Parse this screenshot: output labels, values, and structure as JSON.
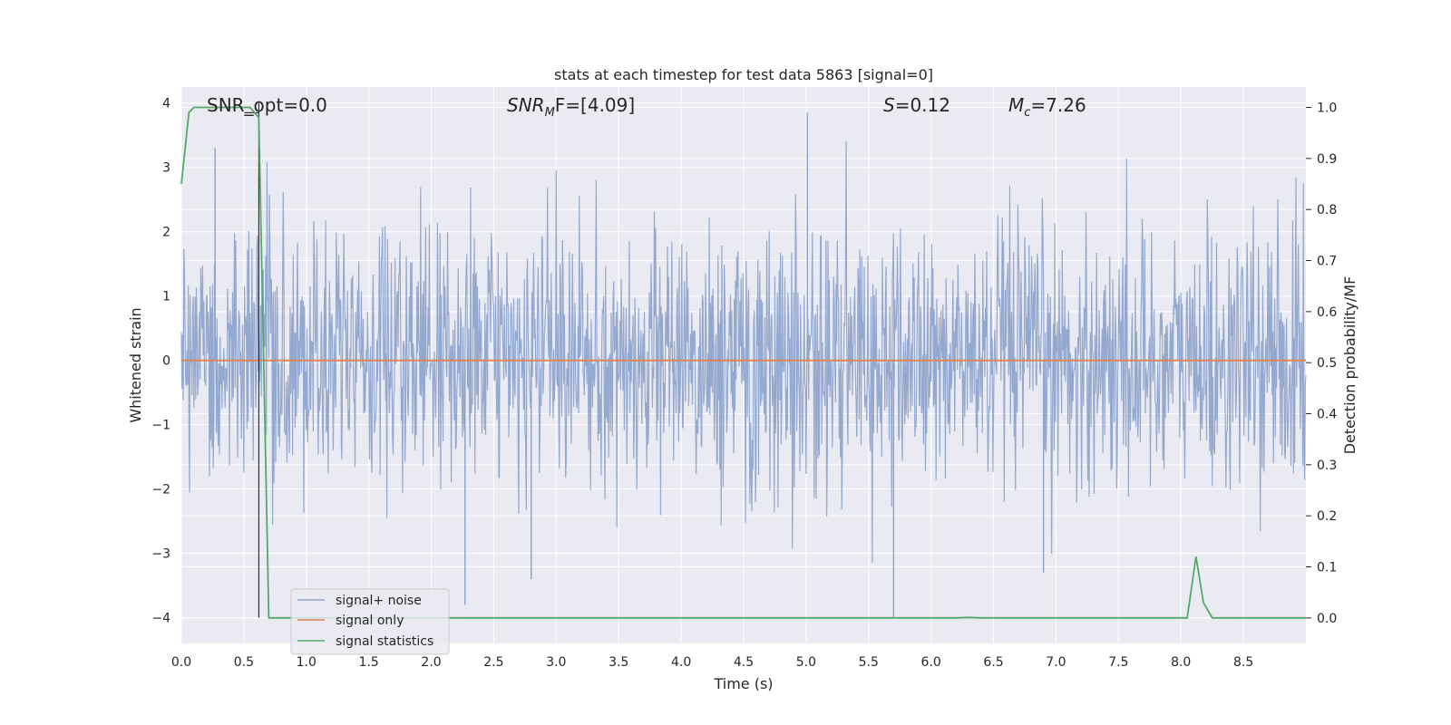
{
  "chart_data": {
    "type": "line",
    "title": "stats at each timestep for test data 5863 [signal=0]",
    "xlabel": "Time (s)",
    "ylabel_left": "Whitened strain",
    "ylabel_right": "Detection probability/MF",
    "xlim": [
      0.0,
      9.0
    ],
    "ylim_left": [
      -4.4,
      4.25
    ],
    "ylim_right": [
      -0.05,
      1.04
    ],
    "xticks": [
      0.0,
      0.5,
      1.0,
      1.5,
      2.0,
      2.5,
      3.0,
      3.5,
      4.0,
      4.5,
      5.0,
      5.5,
      6.0,
      6.5,
      7.0,
      7.5,
      8.0,
      8.5
    ],
    "xtick_labels": [
      "0.0",
      "0.5",
      "1.0",
      "1.5",
      "2.0",
      "2.5",
      "3.0",
      "3.5",
      "4.0",
      "4.5",
      "5.0",
      "5.5",
      "6.0",
      "6.5",
      "7.0",
      "7.5",
      "8.0",
      "8.5"
    ],
    "yticks_left": [
      -4,
      -3,
      -2,
      -1,
      0,
      1,
      2,
      3,
      4
    ],
    "ytick_labels_left": [
      "−4",
      "−3",
      "−2",
      "−1",
      "0",
      "1",
      "2",
      "3",
      "4"
    ],
    "yticks_right": [
      0.0,
      0.1,
      0.2,
      0.3,
      0.4,
      0.5,
      0.6,
      0.7,
      0.8,
      0.9,
      1.0
    ],
    "ytick_labels_right": [
      "0.0",
      "0.1",
      "0.2",
      "0.3",
      "0.4",
      "0.5",
      "0.6",
      "0.7",
      "0.8",
      "0.9",
      "1.0"
    ],
    "grid": true,
    "legend_position": "lower-left",
    "annotations": {
      "snr_opt": "SNR_opt=0.0",
      "snr_mf_main": "SNR",
      "snr_mf_sub": "M",
      "snr_mf_rest": "F=[4.09]",
      "s_main": "S",
      "s_rest": "=0.12",
      "mc_main": "M",
      "mc_sub": "c",
      "mc_rest": "=7.26"
    },
    "series": [
      {
        "name": "signal+ noise",
        "color": "#8fa5cd",
        "axis": "left",
        "style": "dense noise, approx. amplitude range -4.0 to 3.85 around 0",
        "notable_peaks": [
          [
            0.27,
            3.3
          ],
          [
            5.01,
            3.85
          ],
          [
            2.27,
            -3.8
          ],
          [
            5.7,
            -4.0
          ],
          [
            2.8,
            -3.4
          ],
          [
            6.9,
            -3.3
          ]
        ]
      },
      {
        "name": "signal only",
        "color": "#dd8452",
        "axis": "left",
        "x": [
          0.0,
          9.0
        ],
        "y": [
          0.0,
          0.0
        ]
      },
      {
        "name": "signal statistics",
        "color": "#55a868",
        "axis": "right",
        "x": [
          0.0,
          0.06,
          0.1,
          0.55,
          0.62,
          0.7,
          6.2,
          6.3,
          6.4,
          8.05,
          8.12,
          8.18,
          8.25,
          9.0
        ],
        "y": [
          0.85,
          0.99,
          1.0,
          1.0,
          0.98,
          0.0,
          0.0,
          0.001,
          0.0,
          0.0,
          0.12,
          0.03,
          0.0,
          0.0
        ]
      }
    ],
    "vertical_marker_x": 0.62
  }
}
